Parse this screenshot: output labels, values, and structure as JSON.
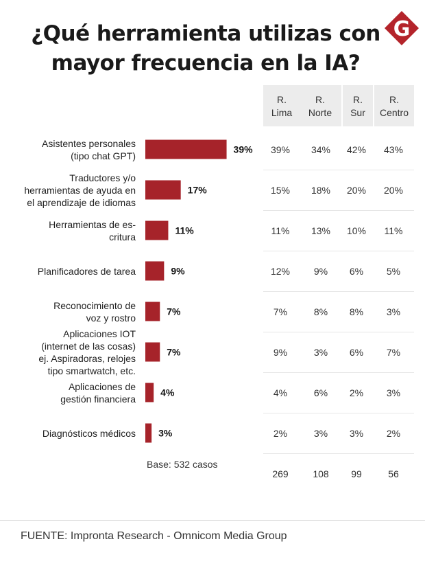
{
  "title_line1": "¿Qué herramienta utilizas con",
  "title_line2": "mayor frecuencia en la IA?",
  "logo_letter": "G",
  "colors": {
    "bar": "#a6232a",
    "logo": "#b4242b",
    "header_bg": "#ececec"
  },
  "columns": [
    {
      "line1": "R.",
      "line2": "Lima"
    },
    {
      "line1": "R.",
      "line2": "Norte"
    },
    {
      "line1": "R.",
      "line2": "Sur"
    },
    {
      "line1": "R.",
      "line2": "Centro"
    }
  ],
  "chart_data": {
    "type": "bar",
    "orientation": "horizontal",
    "title": "¿Qué herramienta utilizas con mayor frecuencia en la IA?",
    "categories": [
      [
        "Asistentes personales",
        "(tipo chat GPT)"
      ],
      [
        "Traductores y/o",
        "herramientas de ayuda en",
        "el aprendizaje de idiomas"
      ],
      [
        "Herramientas de es-",
        "critura"
      ],
      [
        "Planificadores de tarea"
      ],
      [
        "Reconocimiento de",
        "voz y rostro"
      ],
      [
        "Aplicaciones IOT",
        "(internet de las cosas)",
        "ej. Aspiradoras, relojes",
        "tipo smartwatch, etc."
      ],
      [
        "Aplicaciones de",
        "gestión financiera"
      ],
      [
        "Diagnósticos médicos"
      ]
    ],
    "values": [
      39,
      17,
      11,
      9,
      7,
      7,
      4,
      3
    ],
    "value_labels": [
      "39%",
      "17%",
      "11%",
      "9%",
      "7%",
      "7%",
      "4%",
      "3%"
    ],
    "regions": [
      [
        "39%",
        "34%",
        "42%",
        "43%"
      ],
      [
        "15%",
        "18%",
        "20%",
        "20%"
      ],
      [
        "11%",
        "13%",
        "10%",
        "11%"
      ],
      [
        "12%",
        "9%",
        "6%",
        "5%"
      ],
      [
        "7%",
        "8%",
        "8%",
        "3%"
      ],
      [
        "9%",
        "3%",
        "6%",
        "7%"
      ],
      [
        "4%",
        "6%",
        "2%",
        "3%"
      ],
      [
        "2%",
        "3%",
        "3%",
        "2%"
      ]
    ],
    "base_label": "Base: 532 casos",
    "base_counts": [
      "269",
      "108",
      "99",
      "56"
    ]
  },
  "source": "FUENTE: Impronta Research - Omnicom Media Group"
}
